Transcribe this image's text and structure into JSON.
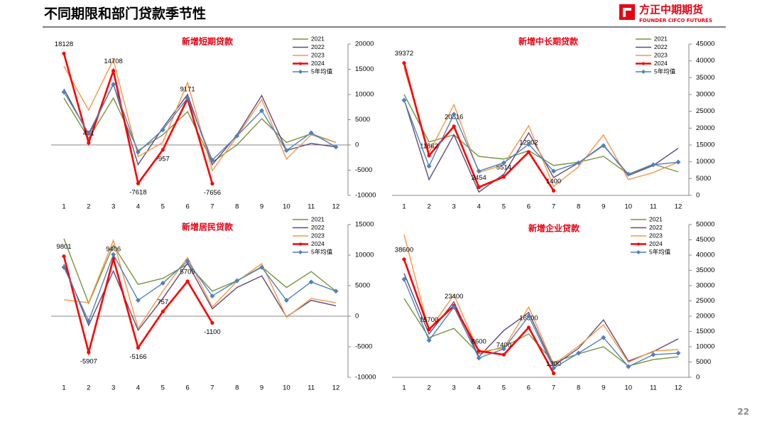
{
  "title": "不同期限和部门贷款季节性",
  "logo": {
    "name": "方正中期期货",
    "subtitle": "FOUNDER CIFCO FUTURES"
  },
  "page_number": "22",
  "chart_data": [
    {
      "type": "line",
      "title": "新增短期贷款",
      "categories": [
        "1",
        "2",
        "3",
        "4",
        "5",
        "6",
        "7",
        "8",
        "9",
        "10",
        "11",
        "12"
      ],
      "ylim": [
        -10000,
        20000
      ],
      "yticks": [
        -10000,
        -5000,
        0,
        5000,
        10000,
        15000,
        20000
      ],
      "series": [
        {
          "name": "2021",
          "color": "#77933c",
          "values": [
            9300,
            1300,
            9300,
            -1100,
            2000,
            6600,
            -3400,
            0,
            5200,
            500,
            2200,
            500
          ]
        },
        {
          "name": "2022",
          "color": "#604a7b",
          "values": [
            11100,
            2000,
            12100,
            -3900,
            3400,
            10000,
            -3900,
            2000,
            9800,
            -1100,
            300,
            -400
          ]
        },
        {
          "name": "2023",
          "color": "#f79646",
          "values": [
            15600,
            6900,
            16900,
            -2300,
            500,
            12400,
            -5100,
            1700,
            9000,
            -2800,
            2000,
            500
          ]
        },
        {
          "name": "2024",
          "color": "#ff0000",
          "marker": "circle",
          "data_labels": true,
          "values": [
            18128,
            431,
            14708,
            -7618,
            -957,
            9171,
            -7656,
            null,
            null,
            null,
            null,
            null
          ]
        },
        {
          "name": "5年均值",
          "color": "#4f81bd",
          "marker": "diamond",
          "values": [
            10500,
            2300,
            12000,
            -1400,
            3000,
            9300,
            -3000,
            1800,
            6800,
            -1100,
            2400,
            -400
          ]
        }
      ]
    },
    {
      "type": "line",
      "title": "新增中长期贷款",
      "categories": [
        "1",
        "2",
        "3",
        "4",
        "5",
        "6",
        "7",
        "8",
        "9",
        "10",
        "11",
        "12"
      ],
      "ylim": [
        0,
        45000
      ],
      "yticks": [
        0,
        5000,
        10000,
        15000,
        20000,
        25000,
        30000,
        35000,
        40000,
        45000
      ],
      "series": [
        {
          "name": "2021",
          "color": "#77933c",
          "values": [
            30000,
            15900,
            18000,
            11600,
            10800,
            13300,
            8900,
            9900,
            11600,
            6300,
            9300,
            7000
          ]
        },
        {
          "name": "2022",
          "color": "#604a7b",
          "values": [
            28500,
            4700,
            18000,
            1000,
            6300,
            18600,
            5300,
            9700,
            15000,
            5900,
            8900,
            14000
          ]
        },
        {
          "name": "2023",
          "color": "#f79646",
          "values": [
            38000,
            12700,
            27000,
            6800,
            9100,
            20700,
            2700,
            8500,
            18000,
            4700,
            6800,
            9900
          ]
        },
        {
          "name": "2024",
          "color": "#ff0000",
          "marker": "circle",
          "data_labels": true,
          "values": [
            39372,
            11862,
            20516,
            2454,
            5514,
            12902,
            1400,
            null,
            null,
            null,
            null,
            null
          ]
        },
        {
          "name": "5年均值",
          "color": "#4f81bd",
          "marker": "diamond",
          "values": [
            28300,
            8700,
            24100,
            7200,
            9700,
            15200,
            7200,
            9700,
            14800,
            6300,
            9100,
            9900
          ]
        }
      ]
    },
    {
      "type": "line",
      "title": "新增居民贷款",
      "categories": [
        "1",
        "2",
        "3",
        "4",
        "5",
        "6",
        "7",
        "8",
        "9",
        "10",
        "11",
        "12"
      ],
      "ylim": [
        -10000,
        15000
      ],
      "yticks": [
        -10000,
        -5000,
        0,
        5000,
        10000,
        15000
      ],
      "series": [
        {
          "name": "2021",
          "color": "#77933c",
          "values": [
            12700,
            2100,
            11600,
            5200,
            6200,
            8500,
            4100,
            5800,
            8100,
            4700,
            7300,
            4100
          ]
        },
        {
          "name": "2022",
          "color": "#604a7b",
          "values": [
            8500,
            -1500,
            7400,
            -2300,
            2900,
            8700,
            1200,
            4700,
            6600,
            -100,
            2600,
            1700
          ]
        },
        {
          "name": "2023",
          "color": "#f79646",
          "values": [
            2700,
            2200,
            12400,
            -2000,
            4100,
            9600,
            1500,
            5700,
            8600,
            -200,
            2900,
            2200
          ]
        },
        {
          "name": "2024",
          "color": "#ff0000",
          "marker": "circle",
          "data_labels": true,
          "values": [
            9801,
            -5907,
            9406,
            -5166,
            757,
            5709,
            -1100,
            null,
            null,
            null,
            null,
            null
          ]
        },
        {
          "name": "5年均值",
          "color": "#4f81bd",
          "marker": "diamond",
          "values": [
            8000,
            -800,
            10100,
            2600,
            5400,
            9000,
            3300,
            5800,
            8000,
            2600,
            5600,
            4100
          ]
        }
      ]
    },
    {
      "type": "line",
      "title": "新增企业贷款",
      "categories": [
        "1",
        "2",
        "3",
        "4",
        "5",
        "6",
        "7",
        "8",
        "9",
        "10",
        "11",
        "12"
      ],
      "ylim": [
        0,
        50000
      ],
      "yticks": [
        0,
        5000,
        10000,
        15000,
        20000,
        25000,
        30000,
        35000,
        40000,
        45000,
        50000
      ],
      "series": [
        {
          "name": "2021",
          "color": "#77933c",
          "values": [
            25800,
            13000,
            16000,
            7700,
            10000,
            14200,
            4900,
            7700,
            10000,
            3700,
            5800,
            6700
          ]
        },
        {
          "name": "2022",
          "color": "#604a7b",
          "values": [
            34000,
            14200,
            24700,
            6700,
            15300,
            21200,
            3700,
            9500,
            18800,
            5300,
            8400,
            12600
          ]
        },
        {
          "name": "2023",
          "color": "#f79646",
          "values": [
            46700,
            15300,
            27000,
            8400,
            9500,
            23000,
            4200,
            10200,
            17200,
            4900,
            8600,
            9100
          ]
        },
        {
          "name": "2024",
          "color": "#ff0000",
          "marker": "circle",
          "data_labels": true,
          "values": [
            38600,
            15700,
            23400,
            8600,
            7400,
            16300,
            1300,
            null,
            null,
            null,
            null,
            null
          ]
        },
        {
          "name": "5年均值",
          "color": "#4f81bd",
          "marker": "diamond",
          "values": [
            32100,
            12100,
            23000,
            6300,
            9300,
            20000,
            3000,
            7900,
            13000,
            3500,
            7400,
            7900
          ]
        }
      ]
    }
  ]
}
